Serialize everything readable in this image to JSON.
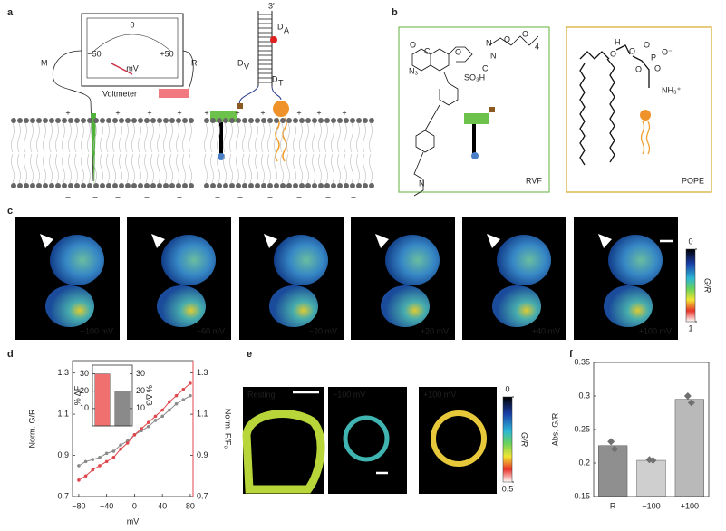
{
  "panel_labels": [
    "a",
    "b",
    "c",
    "d",
    "e",
    "f"
  ],
  "panel_a": {
    "voltmeter": {
      "ticks": [
        "−50",
        "0",
        "+50"
      ],
      "unit": "mV",
      "label": "Voltmeter"
    },
    "electrodes": [
      "M",
      "R"
    ],
    "signs": {
      "plus": "+",
      "minus": "–"
    },
    "dna": {
      "end": "3′",
      "labels": [
        {
          "main": "D",
          "sub": "A"
        },
        {
          "main": "D",
          "sub": "V"
        },
        {
          "main": "D",
          "sub": "T"
        }
      ]
    }
  },
  "panel_b": {
    "boxes": [
      "RVF",
      "POPE"
    ],
    "rvf_atoms": [
      "O",
      "N",
      "N",
      "O",
      "O",
      "4",
      "N₃",
      "Cl",
      "O",
      "SO₃H",
      "Cl",
      "N"
    ],
    "pope_atoms": [
      "H",
      "O",
      "O",
      "O",
      "P",
      "O⁻",
      "O",
      "O",
      "NH₃⁺"
    ]
  },
  "panel_c": {
    "labels": [
      "−100 mV",
      "−60 mV",
      "−20 mV",
      "+20 mV",
      "+40 mV",
      "+100 mV"
    ],
    "colorbar": {
      "title": "G/R",
      "ticks": [
        0,
        1
      ]
    }
  },
  "panel_e": {
    "labels": [
      "Resting",
      "−100 mV",
      "+100 mV"
    ],
    "colorbar": {
      "title": "G/R",
      "ticks": [
        0,
        0.5
      ]
    }
  },
  "chart_data": [
    {
      "type": "line",
      "xlabel": "mV",
      "ylabel": "Norm. G/R",
      "y2label": "Norm. F/F₀",
      "x": [
        -80,
        -70,
        -60,
        -50,
        -40,
        -30,
        -20,
        -10,
        0,
        10,
        20,
        30,
        40,
        50,
        60,
        70,
        80
      ],
      "series": [
        {
          "color": "#8a8a8a",
          "values": [
            0.85,
            0.87,
            0.88,
            0.89,
            0.91,
            0.92,
            0.95,
            0.97,
            1.0,
            1.02,
            1.04,
            1.07,
            1.09,
            1.12,
            1.15,
            1.17,
            1.19
          ]
        },
        {
          "color": "#e0474c",
          "axis": "y2",
          "values": [
            0.78,
            0.8,
            0.83,
            0.85,
            0.87,
            0.89,
            0.93,
            0.96,
            1.0,
            1.03,
            1.06,
            1.09,
            1.12,
            1.16,
            1.19,
            1.22,
            1.25
          ]
        }
      ],
      "xlim": [
        -89,
        84
      ],
      "xticks": [
        {
          "value": -80,
          "label": "−80"
        },
        {
          "value": -40,
          "label": "−40"
        },
        0,
        40,
        80
      ],
      "ylim": [
        0.7,
        1.36
      ],
      "yticks": [
        0.7,
        0.9,
        1.1,
        1.3
      ],
      "y2lim": [
        0.7,
        1.36
      ],
      "y2ticks": [
        0.7,
        0.9,
        1.1,
        1.3
      ],
      "y2color": "#e0474c"
    },
    {
      "type": "bar",
      "ylabel": "% ΔF",
      "y2label": "% ΔG",
      "categories": [
        null,
        null
      ],
      "values": [
        30,
        20
      ],
      "colors": [
        "#f07070",
        "#8a8a8a"
      ],
      "axes": [
        "y",
        "y2"
      ],
      "ylim": [
        0,
        35
      ],
      "yticks": [
        10,
        20,
        30
      ],
      "y2lim": [
        0,
        35
      ],
      "y2ticks": [
        10,
        20,
        30
      ],
      "ycolor": "#e0474c"
    },
    {
      "type": "bar",
      "ylabel": "Abs. G/R",
      "categories": [
        "R",
        "−100",
        "+100"
      ],
      "values": [
        0.226,
        0.204,
        0.295
      ],
      "colors": [
        "#8f8f8f",
        "#cfcfcf",
        "#b9b9b9"
      ],
      "points": [
        [
          0.232,
          0.221
        ],
        [
          0.205,
          0.204
        ],
        [
          0.3,
          0.29
        ]
      ],
      "ylim": [
        0.15,
        0.35
      ],
      "yticks": [
        0.15,
        0.2,
        0.25,
        0.3,
        0.35
      ]
    }
  ]
}
